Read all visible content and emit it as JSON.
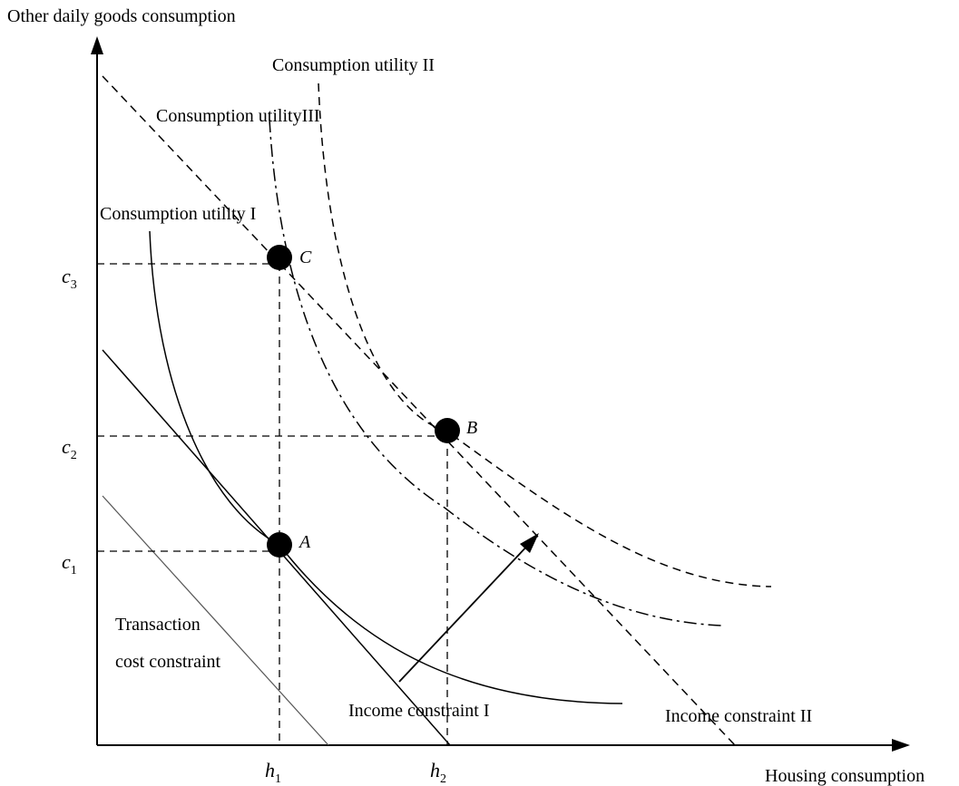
{
  "axes": {
    "y_title": "Other daily goods consumption",
    "x_title": "Housing consumption"
  },
  "curve_labels": {
    "utility_1": "Consumption utility I",
    "utility_2": "Consumption utility II",
    "utility_3": "Consumption utilityIII",
    "transaction_line1": "Transaction",
    "transaction_line2": "cost constraint",
    "income_1": "Income constraint I",
    "income_2": "Income constraint II"
  },
  "points": {
    "a": "A",
    "b": "B",
    "c": "C"
  },
  "ticks": {
    "c_letter": "c",
    "h_letter": "h",
    "c1_sub": "1",
    "c2_sub": "2",
    "c3_sub": "3",
    "h1_sub": "1",
    "h2_sub": "2"
  },
  "colors": {
    "ink": "#000000",
    "faint_line": "#555555"
  }
}
